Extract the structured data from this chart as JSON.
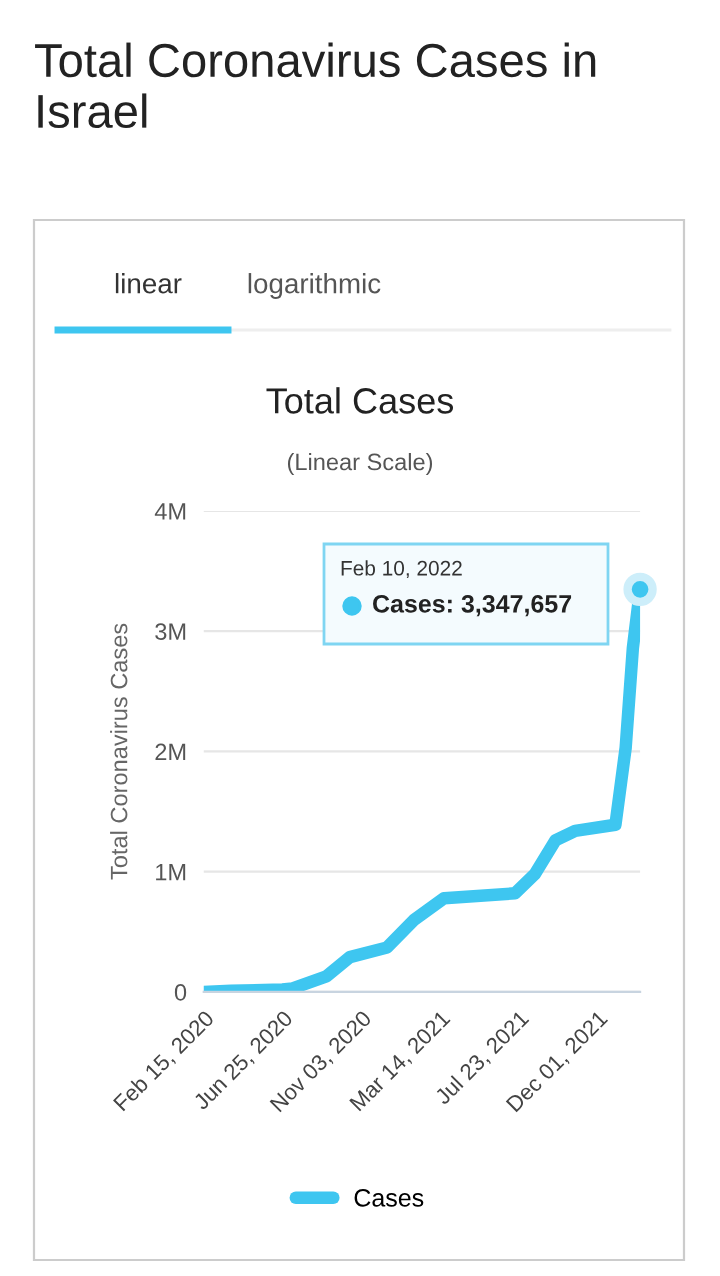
{
  "chart_data": {
    "type": "line",
    "title": "Total Coronavirus Cases in Israel",
    "subtitle": "Total Cases",
    "ylabel": "Total Coronavirus Cases",
    "annotations": [
      "linear",
      "logarithmic",
      "(Linear Scale)",
      "Feb 10, 2022",
      "Cases: 3,347,657"
    ],
    "x": [
      "2020-02-15",
      "2020-03-31",
      "2020-06-25",
      "2020-07-12",
      "2020-09-06",
      "2020-10-15",
      "2020-12-16",
      "2021-01-30",
      "2021-03-21",
      "2021-07-17",
      "2021-08-19",
      "2021-09-22",
      "2021-10-25",
      "2021-12-31",
      "2022-01-17",
      "2022-01-29",
      "2022-02-10"
    ],
    "series": [
      {
        "name": "Cases",
        "color": "#3ec6f0",
        "values": [
          0,
          10000,
          20000,
          30000,
          130000,
          290000,
          370000,
          600000,
          780000,
          820000,
          980000,
          1260000,
          1340000,
          1390000,
          2030000,
          2860000,
          3347657
        ]
      }
    ],
    "xlim": [
      "2020-02-15",
      "2022-02-10"
    ],
    "xticks": [
      {
        "value": "2020-02-15",
        "label": "Feb 15, 2020"
      },
      {
        "value": "2020-06-25",
        "label": "Jun 25, 2020"
      },
      {
        "value": "2020-11-03",
        "label": "Nov 03, 2020"
      },
      {
        "value": "2021-03-14",
        "label": "Mar 14, 2021"
      },
      {
        "value": "2021-07-23",
        "label": "Jul 23, 2021"
      },
      {
        "value": "2021-12-01",
        "label": "Dec 01, 2021"
      }
    ],
    "ylim": [
      0,
      4000000
    ],
    "yticks": [
      0,
      {
        "value": 1000000,
        "label": "1M"
      },
      {
        "value": 2000000,
        "label": "2M"
      },
      {
        "value": 3000000,
        "label": "3M"
      },
      {
        "value": 4000000,
        "label": "4M"
      }
    ],
    "grid": "y",
    "legend": "bottom",
    "marker": "none",
    "line_style": "solid"
  }
}
